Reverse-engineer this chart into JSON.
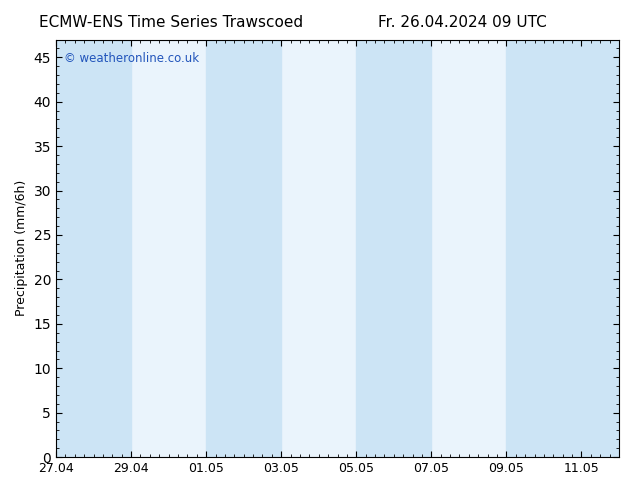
{
  "title_left": "ECMW-ENS Time Series Trawscoed",
  "title_right": "Fr. 26.04.2024 09 UTC",
  "ylabel": "Precipitation (mm/6h)",
  "watermark": "© weatheronline.co.uk",
  "ylim": [
    0,
    47
  ],
  "yticks": [
    0,
    5,
    10,
    15,
    20,
    25,
    30,
    35,
    40,
    45
  ],
  "background_color": "#ffffff",
  "plot_bg_color": "#eaf4fc",
  "shade_color": "#cce4f5",
  "shade_bands": [
    [
      0,
      2
    ],
    [
      4,
      6
    ],
    [
      8,
      10
    ],
    [
      12,
      15
    ]
  ],
  "x_tick_labels": [
    "27.04",
    "29.04",
    "01.05",
    "03.05",
    "05.05",
    "07.05",
    "09.05",
    "11.05"
  ],
  "x_tick_positions": [
    0,
    2,
    4,
    6,
    8,
    10,
    12,
    14
  ],
  "xmin": 0,
  "xmax": 15.0,
  "title_fontsize": 11,
  "label_fontsize": 9,
  "watermark_fontsize": 8.5,
  "tick_labelsize": 9
}
